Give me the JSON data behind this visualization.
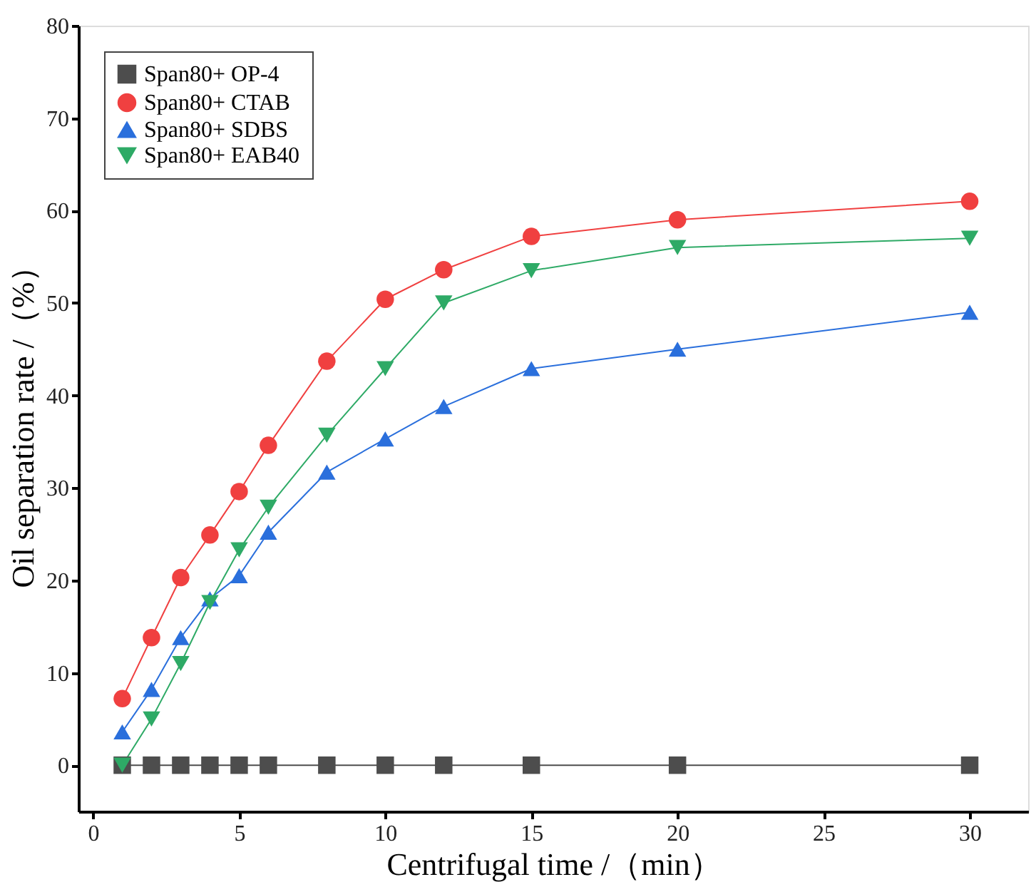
{
  "chart_data": {
    "type": "line",
    "xlabel": "Centrifugal time /（min）",
    "ylabel": "Oil separation rate /（%）",
    "x": [
      1,
      2,
      3,
      4,
      5,
      6,
      8,
      10,
      12,
      15,
      20,
      30
    ],
    "xlim": [
      -0.5,
      32
    ],
    "xticks": [
      0,
      5,
      10,
      15,
      20,
      25,
      30
    ],
    "ylim": [
      -5,
      80
    ],
    "yticks": [
      0,
      10,
      20,
      30,
      40,
      50,
      60,
      70,
      80
    ],
    "grid": false,
    "legend": "top left",
    "line_style": "solid",
    "series": [
      {
        "name": "Span80+ OP-4",
        "color": "#4d4d4d",
        "marker": "square",
        "values": [
          0,
          0,
          0,
          0,
          0,
          0,
          0,
          0,
          0,
          0,
          0,
          0
        ]
      },
      {
        "name": "Span80+ CTAB",
        "color": "#f04040",
        "marker": "circle",
        "values": [
          7.2,
          13.8,
          20.3,
          24.9,
          29.6,
          34.6,
          43.7,
          50.4,
          53.6,
          57.2,
          59,
          61
        ]
      },
      {
        "name": "Span80+ SDBS",
        "color": "#2a6fdc",
        "marker": "triangle",
        "values": [
          3.6,
          8.2,
          13.8,
          18,
          20.5,
          25.2,
          31.7,
          35.3,
          38.8,
          42.9,
          45,
          49
        ]
      },
      {
        "name": "Span80+ EAB40",
        "color": "#2eaa66",
        "marker": "triangle-down",
        "values": [
          0,
          5,
          11,
          17.6,
          23.3,
          27.9,
          35.7,
          42.9,
          50,
          53.5,
          56,
          57
        ]
      }
    ]
  }
}
